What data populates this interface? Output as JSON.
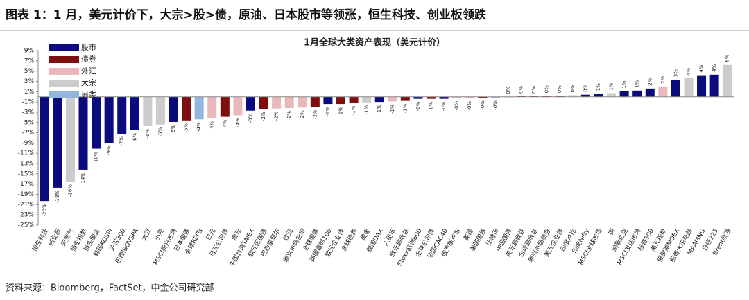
{
  "header": {
    "title": "图表 1：1 月，美元计价下，大宗>股>债，原油、日本股市等领涨，恒生科技、创业板领跌"
  },
  "chart_data": {
    "type": "bar",
    "title": "1月全球大类资产表现（美元计价）",
    "legend": [
      {
        "name": "股市",
        "color": "#0b0b7d"
      },
      {
        "name": "债券",
        "color": "#7f0f0f"
      },
      {
        "name": "外汇",
        "color": "#e9b8bb"
      },
      {
        "name": "大宗",
        "color": "#cccccc"
      },
      {
        "name": "另类",
        "color": "#93b6df"
      }
    ],
    "categories": [
      "恒生科技",
      "创业板",
      "天然气",
      "恒生指数",
      "恒生国企",
      "韩国KOSPI",
      "沪深300",
      "巴西IBOVSPA",
      "大豆",
      "小麦",
      "MSCI新兴市场",
      "日本国债",
      "全球REITs",
      "日元",
      "日元公司债",
      "澳元",
      "中国台湾TAIEX",
      "欧元区国债",
      "巴西雷亚尔",
      "欧元",
      "新兴市场货币",
      "全球国债",
      "英国富时100",
      "欧元企业债",
      "全球债券",
      "黄金",
      "德国DAX",
      "人民币",
      "欧元高收益",
      "Stoxx欧洲600",
      "全球公司债",
      "法国CAC40",
      "俄罗斯卢布",
      "英镑",
      "美国国债",
      "比特币",
      "中国国债",
      "美元高收益",
      "全球高收益",
      "新兴市场债券",
      "美元企业债",
      "印度卢比",
      "印度Nifty",
      "MSCI全球市场",
      "铜",
      "纳斯达克",
      "MSCI发达市场",
      "标普500",
      "美元指数",
      "俄罗斯MOEX",
      "标普大宗商品",
      "MAAMNG",
      "日经225",
      "Brent原油"
    ],
    "values": [
      -20.3,
      -17.7,
      -16.5,
      -14.2,
      -10.1,
      -9.0,
      -7.2,
      -6.5,
      -5.7,
      -5.4,
      -4.9,
      -4.6,
      -4.4,
      -4.2,
      -3.9,
      -3.6,
      -2.7,
      -2.4,
      -2.3,
      -2.2,
      -2.1,
      -2.0,
      -1.4,
      -1.4,
      -1.2,
      -1.1,
      -1.0,
      -0.9,
      -0.8,
      -0.4,
      -0.4,
      -0.4,
      -0.3,
      -0.3,
      -0.2,
      -0.2,
      0.0,
      0.1,
      0.1,
      0.2,
      0.2,
      0.3,
      0.4,
      0.6,
      0.7,
      1.1,
      1.2,
      1.6,
      2.0,
      3.3,
      3.6,
      4.2,
      4.3,
      6.2
    ],
    "value_labels": [
      "-20%",
      "-18%",
      "-16%",
      "-14%",
      "-10%",
      "-9%",
      "-7%",
      "-6%",
      "-6%",
      "-5%",
      "-5%",
      "-5%",
      "-4%",
      "-4%",
      "-4%",
      "-4%",
      "-3%",
      "-2%",
      "-2%",
      "-2%",
      "-2%",
      "-2%",
      "-1%",
      "-1%",
      "-1%",
      "-1%",
      "-1%",
      "-1%",
      "-1%",
      "-0%",
      "-0%",
      "-0%",
      "-0%",
      "-0%",
      "-0%",
      "-0%",
      "0%",
      "0%",
      "0%",
      "0%",
      "0%",
      "0%",
      "0%",
      "1%",
      "1%",
      "1%",
      "1%",
      "2%",
      "2%",
      "3%",
      "4%",
      "4%",
      "4%",
      "6%"
    ],
    "classes": [
      0,
      0,
      3,
      0,
      0,
      0,
      0,
      0,
      3,
      3,
      0,
      1,
      4,
      2,
      1,
      2,
      0,
      1,
      2,
      2,
      2,
      1,
      0,
      1,
      1,
      3,
      0,
      2,
      1,
      0,
      1,
      0,
      2,
      2,
      1,
      4,
      1,
      1,
      1,
      1,
      1,
      2,
      0,
      0,
      3,
      0,
      0,
      0,
      2,
      0,
      3,
      0,
      0,
      3
    ],
    "ylim": [
      -25,
      9
    ],
    "yticks": [
      {
        "value": 9,
        "label": "9%"
      },
      {
        "value": 7,
        "label": "7%"
      },
      {
        "value": 5,
        "label": "5%"
      },
      {
        "value": 3,
        "label": "3%"
      },
      {
        "value": 1,
        "label": "1%"
      },
      {
        "value": -1,
        "label": "-1%"
      },
      {
        "value": -3,
        "label": "-3%"
      },
      {
        "value": -5,
        "label": "-5%"
      },
      {
        "value": -7,
        "label": "-7%"
      },
      {
        "value": -9,
        "label": "-9%"
      },
      {
        "value": -11,
        "label": "-11%"
      },
      {
        "value": -13,
        "label": "-13%"
      },
      {
        "value": -15,
        "label": "-15%"
      },
      {
        "value": -17,
        "label": "-17%"
      },
      {
        "value": -19,
        "label": "-19%"
      },
      {
        "value": -21,
        "label": "-21%"
      },
      {
        "value": -23,
        "label": "-23%"
      },
      {
        "value": -25,
        "label": "-25%"
      }
    ],
    "negative_label_color": "#e0201b",
    "positive_label_color": "#555555"
  },
  "footer": {
    "source": "资料来源：Bloomberg，FactSet，中金公司研究部"
  }
}
